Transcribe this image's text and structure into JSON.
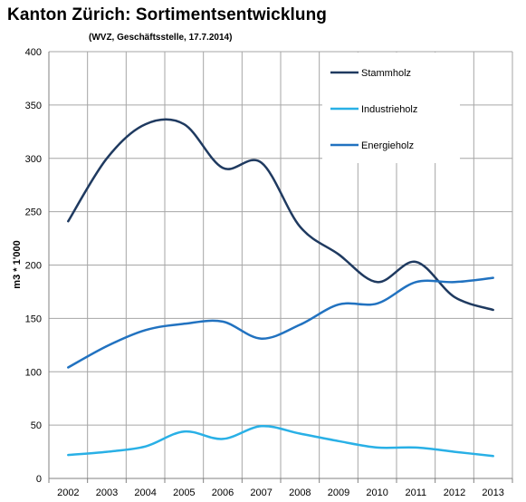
{
  "chart_data": {
    "type": "line",
    "title": "Kanton Zürich: Sortimentsentwicklung",
    "subtitle": "(WVZ, Geschäftsstelle, 17.7.2014)",
    "xlabel": "",
    "ylabel": "m3 * 1'000",
    "ylim": [
      0,
      400
    ],
    "yticks": [
      0,
      50,
      100,
      150,
      200,
      250,
      300,
      350,
      400
    ],
    "categories": [
      "2002",
      "2003",
      "2004",
      "2005",
      "2006",
      "2007",
      "2008",
      "2009",
      "2010",
      "2011",
      "2012",
      "2013"
    ],
    "grid": true,
    "legend_position": "top-right",
    "series": [
      {
        "name": "Stammholz",
        "color": "#1f3a60",
        "values": [
          241,
          300,
          332,
          332,
          291,
          296,
          236,
          210,
          184,
          203,
          170,
          158
        ]
      },
      {
        "name": "Industrieholz",
        "color": "#29b0e6",
        "values": [
          22,
          25,
          30,
          44,
          37,
          49,
          42,
          35,
          29,
          29,
          25,
          21
        ]
      },
      {
        "name": "Energieholz",
        "color": "#2172c0",
        "values": [
          104,
          124,
          139,
          145,
          147,
          131,
          144,
          163,
          164,
          184,
          184,
          188
        ]
      }
    ]
  }
}
